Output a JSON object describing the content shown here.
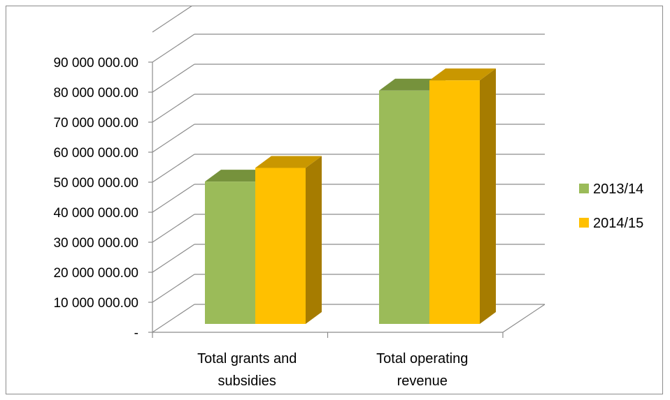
{
  "chart_data": {
    "type": "bar",
    "style": "3d-clustered-column",
    "categories": [
      "Total grants and subsidies",
      "Total operating revenue"
    ],
    "category_lines": [
      [
        "Total grants and",
        "subsidies"
      ],
      [
        "Total operating",
        "revenue"
      ]
    ],
    "series": [
      {
        "name": "2013/14",
        "values": [
          48800000,
          80000000
        ],
        "color": "#9bbb59",
        "top_color": "#76923c",
        "side_color": "#76923c"
      },
      {
        "name": "2014/15",
        "values": [
          53500000,
          83500000
        ],
        "color": "#ffc000",
        "top_color": "#c99700",
        "side_color": "#a67c00"
      }
    ],
    "y_ticks": [
      {
        "value": 0,
        "label": "-"
      },
      {
        "value": 10000000,
        "label": "10 000 000.00"
      },
      {
        "value": 20000000,
        "label": "20 000 000.00"
      },
      {
        "value": 30000000,
        "label": "30 000 000.00"
      },
      {
        "value": 40000000,
        "label": "40 000 000.00"
      },
      {
        "value": 50000000,
        "label": "50 000 000.00"
      },
      {
        "value": 60000000,
        "label": "60 000 000.00"
      },
      {
        "value": 70000000,
        "label": "70 000 000.00"
      },
      {
        "value": 80000000,
        "label": "80 000 000.00"
      },
      {
        "value": 90000000,
        "label": "90 000 000.00"
      }
    ],
    "ylim": [
      0,
      100000000
    ],
    "grid": true,
    "legend_position": "right",
    "title": "",
    "xlabel": "",
    "ylabel": ""
  }
}
